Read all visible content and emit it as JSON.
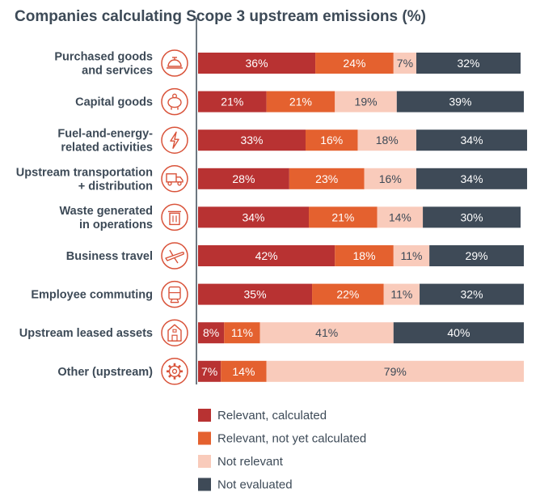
{
  "chart_data": {
    "type": "bar",
    "orientation": "horizontal",
    "stacked": true,
    "title": "Companies calculating Scope 3 upstream emissions (%)",
    "xlabel": "",
    "ylabel": "",
    "xlim": [
      0,
      100
    ],
    "grid": false,
    "legend_position": "bottom",
    "categories": [
      "Purchased goods\nand services",
      "Capital goods",
      "Fuel-and-energy-\nrelated activities",
      "Upstream transportation\n+ distribution",
      "Waste generated\nin operations",
      "Business travel",
      "Employee commuting",
      "Upstream leased assets",
      "Other (upstream)"
    ],
    "category_icons": [
      "service-bell-icon",
      "piggy-bank-icon",
      "lightning-bolt-icon",
      "delivery-truck-icon",
      "trash-bin-icon",
      "airplane-icon",
      "train-icon",
      "building-icon",
      "gear-icon"
    ],
    "series": [
      {
        "name": "Relevant, calculated",
        "color": "#b83232",
        "text_color": "#ffffff",
        "values": [
          36,
          21,
          33,
          28,
          34,
          42,
          35,
          8,
          7
        ],
        "labels": [
          "36%",
          "21%",
          "33%",
          "28%",
          "34%",
          "42%",
          "35%",
          "8%",
          "7%"
        ]
      },
      {
        "name": "Relevant, not yet calculated",
        "color": "#e4612f",
        "text_color": "#ffffff",
        "values": [
          24,
          21,
          16,
          23,
          21,
          18,
          22,
          11,
          14
        ],
        "labels": [
          "24%",
          "21%",
          "16%",
          "23%",
          "21%",
          "18%",
          "22%",
          "11%",
          "14%"
        ]
      },
      {
        "name": "Not relevant",
        "color": "#f9cbbb",
        "text_color": "#3d4a57",
        "values": [
          7,
          19,
          18,
          16,
          14,
          11,
          11,
          41,
          79
        ],
        "labels": [
          "7%",
          "19%",
          "18%",
          "16%",
          "14%",
          "11%",
          "11%",
          "41%",
          "79%"
        ]
      },
      {
        "name": "Not evaluated",
        "color": "#3e4a57",
        "text_color": "#ffffff",
        "values": [
          32,
          39,
          34,
          34,
          30,
          29,
          32,
          40,
          0
        ],
        "labels": [
          "32%",
          "39%",
          "34%",
          "34%",
          "30%",
          "29%",
          "32%",
          "40%",
          ""
        ]
      }
    ],
    "colors": {
      "text": "#3d4a57",
      "icon": "#d9533a",
      "axis": "#3d4a57"
    }
  }
}
